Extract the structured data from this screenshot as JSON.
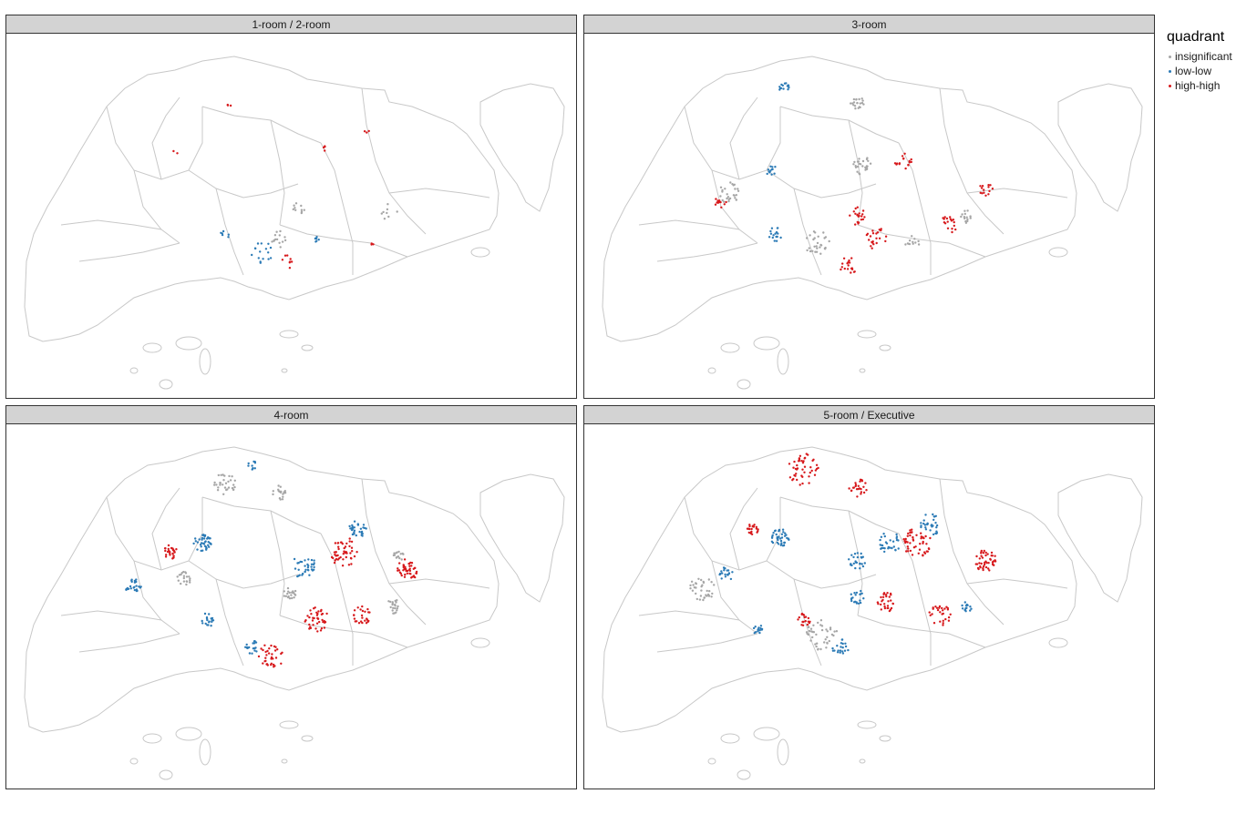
{
  "colors": {
    "insignificant": "#a6a6a6",
    "low-low": "#2c7bb6",
    "high-high": "#d7191c",
    "outline": "#c8c8c8"
  },
  "legend": {
    "title": "quadrant",
    "items": [
      {
        "label": "insignificant",
        "color": "#a6a6a6"
      },
      {
        "label": "low-low",
        "color": "#2c7bb6"
      },
      {
        "label": "high-high",
        "color": "#d7191c"
      }
    ]
  },
  "panels": [
    {
      "title": "1-room / 2-room"
    },
    {
      "title": "3-room"
    },
    {
      "title": "4-room"
    },
    {
      "title": "5-room / Executive"
    }
  ]
}
